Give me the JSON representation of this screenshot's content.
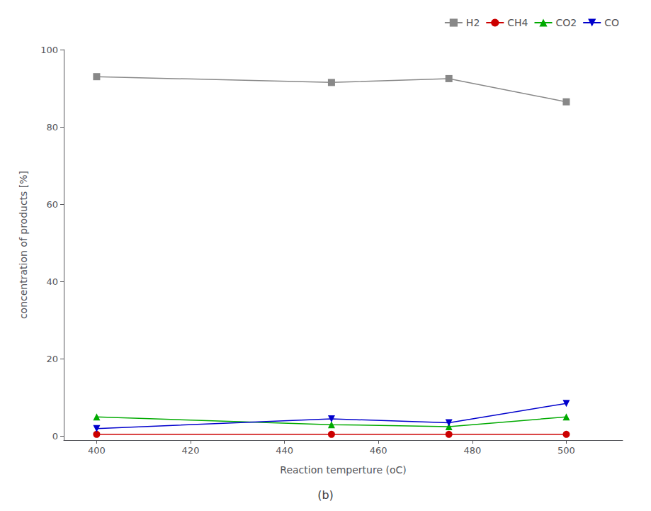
{
  "chart_data": {
    "type": "line",
    "subtitle": "(b)",
    "x_label": "Reaction temperture (oC)",
    "y_label": "concentration of products [%]",
    "x": [
      400,
      450,
      475,
      500
    ],
    "series": [
      {
        "name": "H2",
        "color": "#888888",
        "marker": "square",
        "line_style": "solid",
        "values": [
          93.0,
          91.5,
          92.5,
          86.5
        ]
      },
      {
        "name": "CH4",
        "color": "#cc0000",
        "marker": "circle",
        "line_style": "solid",
        "values": [
          0.5,
          0.5,
          0.5,
          0.5
        ]
      },
      {
        "name": "CO2",
        "color": "#00aa00",
        "marker": "triangle-up",
        "line_style": "solid",
        "values": [
          5.0,
          3.0,
          2.5,
          5.0
        ]
      },
      {
        "name": "CO",
        "color": "#0000cc",
        "marker": "triangle-down",
        "line_style": "solid",
        "values": [
          2.0,
          4.5,
          3.5,
          8.5
        ]
      }
    ],
    "xlim": [
      393,
      512
    ],
    "ylim": [
      -1,
      100
    ],
    "xticks": [
      400,
      420,
      440,
      460,
      480,
      500
    ],
    "yticks": [
      0,
      20,
      40,
      60,
      80,
      100
    ],
    "legend": "upper right",
    "grid": false
  }
}
